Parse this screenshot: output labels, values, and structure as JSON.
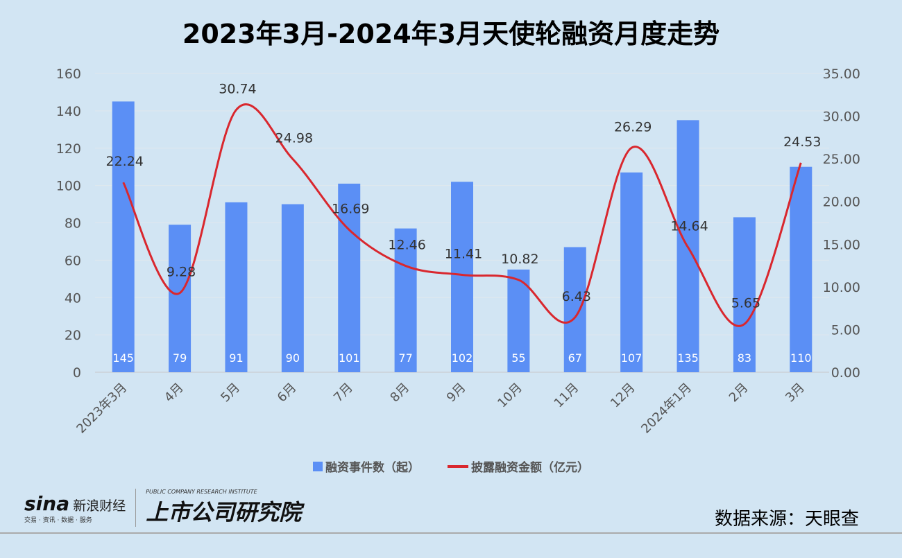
{
  "chart_data": {
    "type": "bar+line",
    "title": "2023年3月-2024年3月天使轮融资月度走势",
    "categories": [
      "2023年3月",
      "4月",
      "5月",
      "6月",
      "7月",
      "8月",
      "9月",
      "10月",
      "11月",
      "12月",
      "2024年1月",
      "2月",
      "3月"
    ],
    "series": [
      {
        "name": "融资事件数（起）",
        "type": "bar",
        "axis": "left",
        "color": "#5b8ff5",
        "values": [
          145,
          79,
          91,
          90,
          101,
          77,
          102,
          55,
          67,
          107,
          135,
          83,
          110
        ]
      },
      {
        "name": "披露融资金额（亿元）",
        "type": "line",
        "axis": "right",
        "color": "#d9272e",
        "smooth": true,
        "values": [
          22.24,
          9.28,
          30.74,
          24.98,
          16.69,
          12.46,
          11.41,
          10.82,
          6.43,
          26.29,
          14.64,
          5.65,
          24.53
        ]
      }
    ],
    "left_axis": {
      "ylim": [
        0,
        160
      ],
      "ticks": [
        "0",
        "20",
        "40",
        "60",
        "80",
        "100",
        "120",
        "140",
        "160"
      ]
    },
    "right_axis": {
      "ylim": [
        0,
        35
      ],
      "ticks": [
        "0.00",
        "5.00",
        "10.00",
        "15.00",
        "20.00",
        "25.00",
        "30.00",
        "35.00"
      ]
    },
    "grid": true,
    "legend": "bottom"
  },
  "footer": {
    "logo_sina": "sina",
    "logo_sina_cn": "新浪财经",
    "logo_sina_tag": "交易 · 资讯 · 数据 · 服务",
    "logo_institute": "上市公司研究院",
    "logo_institute_en": "PUBLIC COMPANY RESEARCH INSTITUTE",
    "source": "数据来源：天眼查"
  }
}
